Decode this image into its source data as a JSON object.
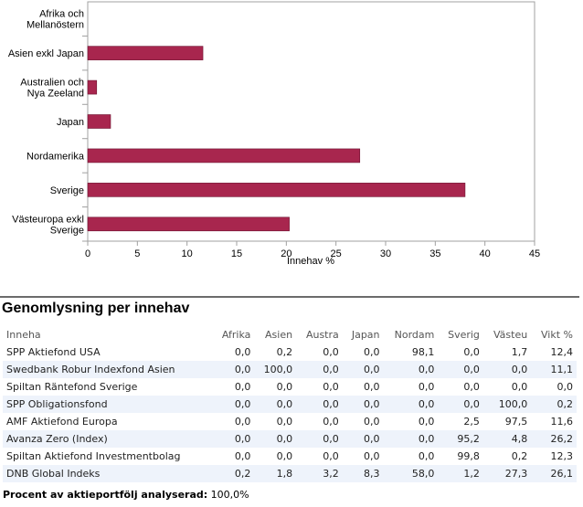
{
  "chart_data": {
    "type": "bar",
    "orientation": "horizontal",
    "categories": [
      "Afrika och Mellanöstern",
      "Asien exkl Japan",
      "Australien och Nya Zeeland",
      "Japan",
      "Nordamerika",
      "Sverige",
      "Västeuropa exkl Sverige"
    ],
    "category_lines": [
      [
        "Afrika och",
        "Mellanöstern"
      ],
      [
        "Asien exkl Japan"
      ],
      [
        "Australien och",
        "Nya Zeeland"
      ],
      [
        "Japan"
      ],
      [
        "Nordamerika"
      ],
      [
        "Sverige"
      ],
      [
        "Västeuropa exkl",
        "Sverige"
      ]
    ],
    "values": [
      0,
      11.6,
      0.9,
      2.3,
      27.4,
      38.0,
      20.3
    ],
    "xlabel": "Innehav %",
    "xlim": [
      0,
      45
    ],
    "xticks": [
      0,
      5,
      10,
      15,
      20,
      25,
      30,
      35,
      40,
      45
    ],
    "bar_color": "#a8264e",
    "grid": false
  },
  "section": {
    "title": "Genomlysning per innehav",
    "headers": [
      "Inneha",
      "Afrika",
      "Asien",
      "Austra",
      "Japan",
      "Nordam",
      "Sverig",
      "Västeu",
      "Vikt %"
    ],
    "rows": [
      [
        "SPP Aktiefond USA",
        "0,0",
        "0,2",
        "0,0",
        "0,0",
        "98,1",
        "0,0",
        "1,7",
        "12,4"
      ],
      [
        "Swedbank Robur Indexfond Asien",
        "0,0",
        "100,0",
        "0,0",
        "0,0",
        "0,0",
        "0,0",
        "0,0",
        "11,1"
      ],
      [
        "Spiltan Räntefond Sverige",
        "0,0",
        "0,0",
        "0,0",
        "0,0",
        "0,0",
        "0,0",
        "0,0",
        "0,0"
      ],
      [
        "SPP Obligationsfond",
        "0,0",
        "0,0",
        "0,0",
        "0,0",
        "0,0",
        "0,0",
        "100,0",
        "0,2"
      ],
      [
        "AMF Aktiefond Europa",
        "0,0",
        "0,0",
        "0,0",
        "0,0",
        "0,0",
        "2,5",
        "97,5",
        "11,6"
      ],
      [
        "Avanza Zero (Index)",
        "0,0",
        "0,0",
        "0,0",
        "0,0",
        "0,0",
        "95,2",
        "4,8",
        "26,2"
      ],
      [
        "Spiltan Aktiefond Investmentbolag",
        "0,0",
        "0,0",
        "0,0",
        "0,0",
        "0,0",
        "99,8",
        "0,2",
        "12,3"
      ],
      [
        "DNB Global Indeks",
        "0,2",
        "1,8",
        "3,2",
        "8,3",
        "58,0",
        "1,2",
        "27,3",
        "26,1"
      ]
    ],
    "footer_label": "Procent av aktieportfölj analyserad:",
    "footer_value": "100,0%"
  }
}
